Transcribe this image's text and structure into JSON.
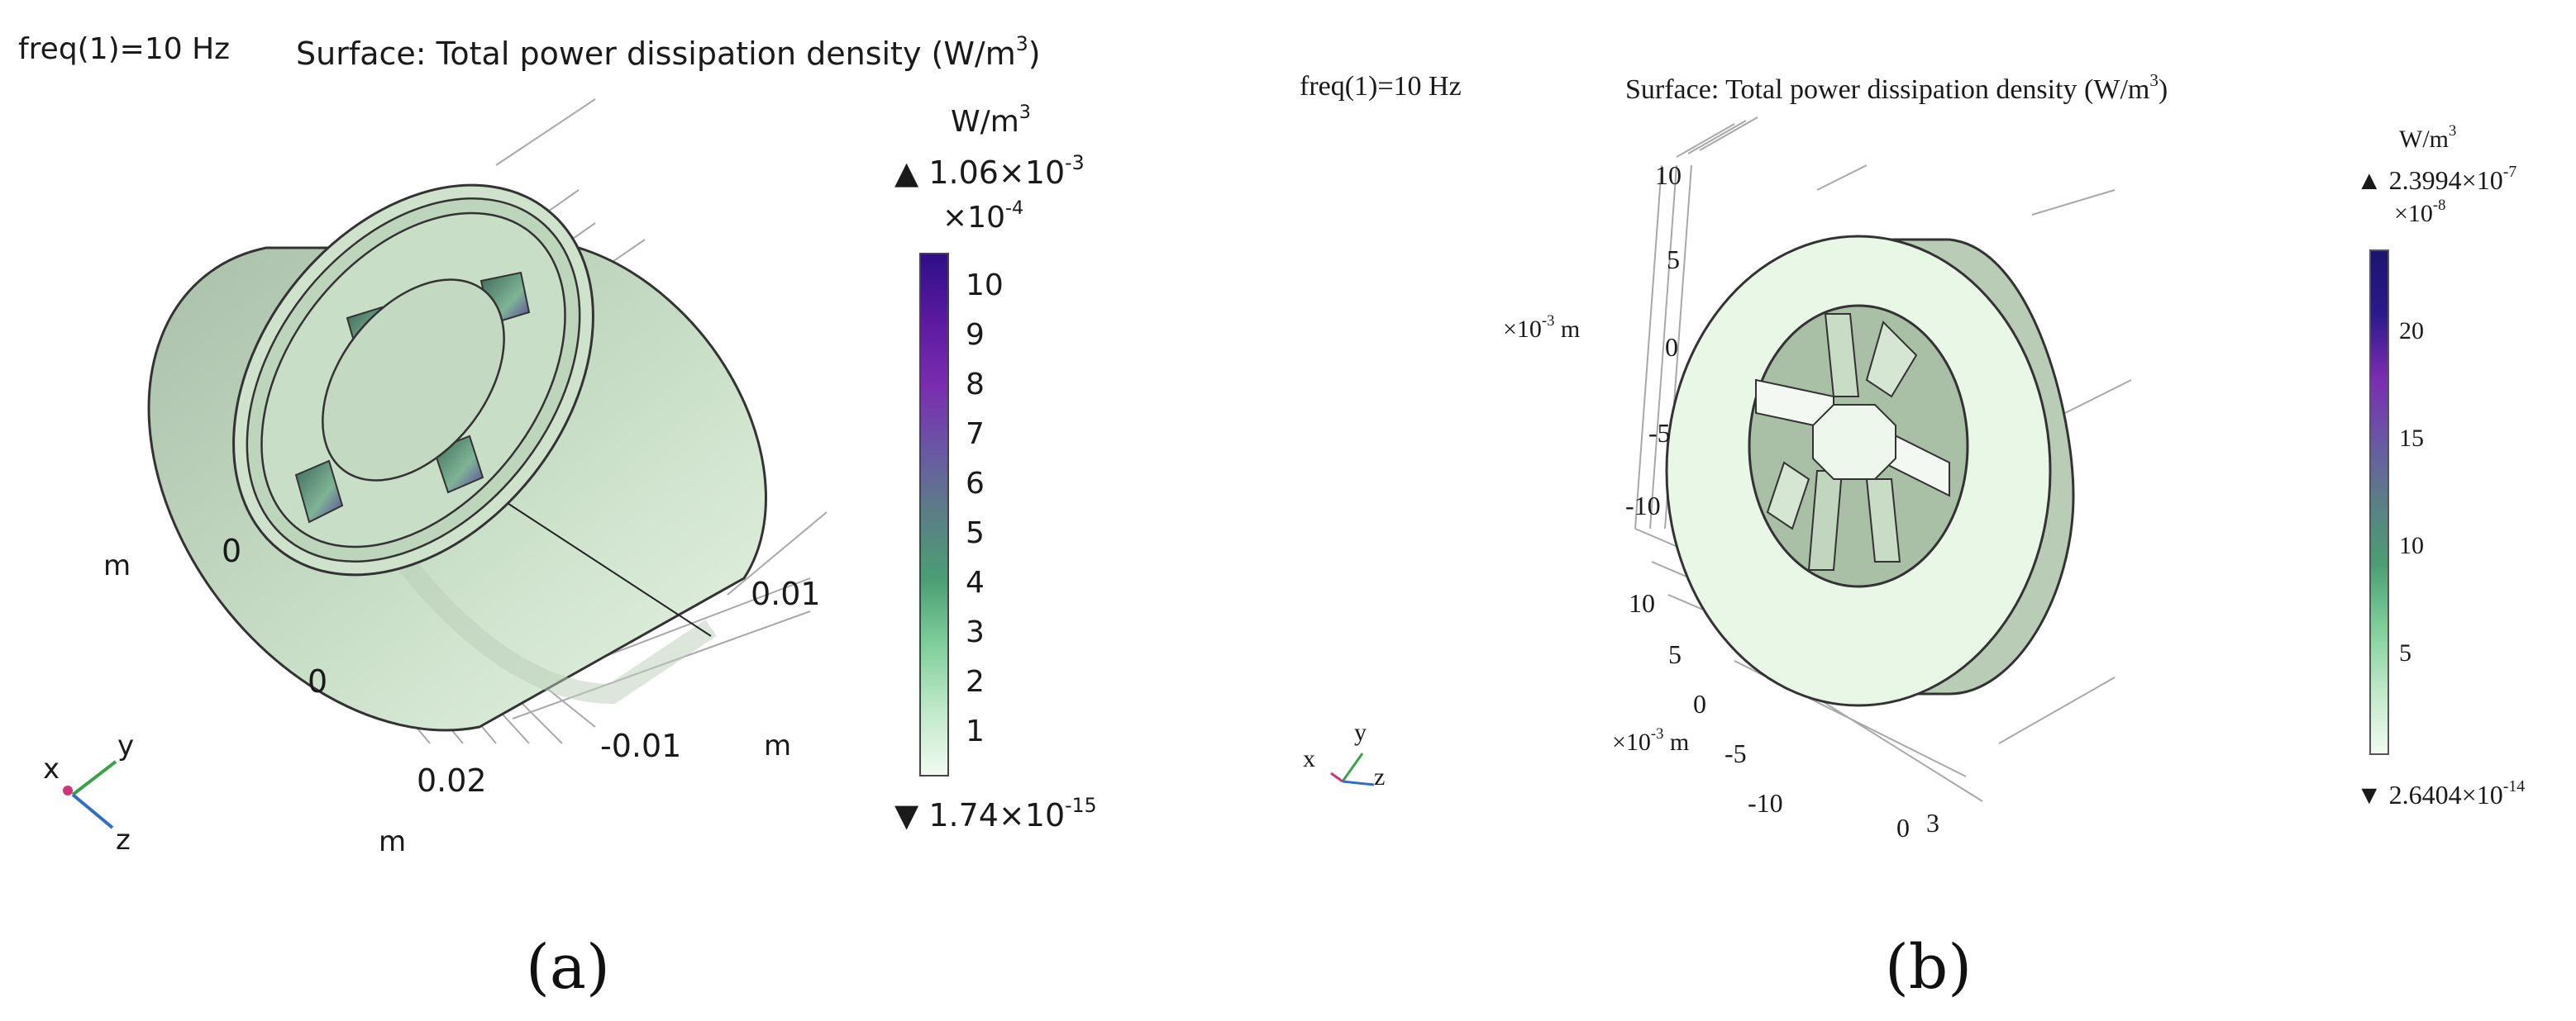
{
  "panel_a": {
    "freq_label": "freq(1)=10 Hz",
    "title": "Surface: Total power dissipation density (W/m",
    "title_exp": "3",
    "title_close": ")",
    "colorbar": {
      "unit_base": "W/m",
      "unit_exp": "3",
      "max_base": "1.06×10",
      "max_exp": "-3",
      "multiplier_base": "×10",
      "multiplier_exp": "-4",
      "ticks": [
        "10",
        "9",
        "8",
        "7",
        "6",
        "5",
        "4",
        "3",
        "2",
        "1"
      ],
      "min_base": "1.74×10",
      "min_exp": "-15",
      "colors": [
        "#f0fbf0",
        "#bfe8c8",
        "#7fcf9a",
        "#4b9e74",
        "#5b7f86",
        "#6a56a6",
        "#7a2cb0",
        "#5a1aa0",
        "#2f0f88"
      ]
    },
    "axes": {
      "label_m_left": "m",
      "tick_0_a": "0",
      "tick_0_b": "0",
      "tick_002": "0.02",
      "label_m_bottom": "m",
      "tick_001": "0.01",
      "tick_neg001": "-0.01",
      "label_m_right": "m"
    },
    "triad": {
      "x": "x",
      "y": "y",
      "z": "z"
    },
    "caption": "(a)"
  },
  "panel_b": {
    "freq_label": "freq(1)=10 Hz",
    "title": "Surface: Total power dissipation density (W/m",
    "title_exp": "3",
    "title_close": ")",
    "colorbar": {
      "unit_base": "W/m",
      "unit_exp": "3",
      "max_base": "2.3994×10",
      "max_exp": "-7",
      "multiplier_base": "×10",
      "multiplier_exp": "-8",
      "ticks": [
        "20",
        "15",
        "10",
        "5"
      ],
      "min_base": "2.6404×10",
      "min_exp": "-14",
      "colors": [
        "#f0fbf0",
        "#bfe8c8",
        "#7fcf9a",
        "#4b9e74",
        "#5b7f86",
        "#6a56a6",
        "#7a2cb0",
        "#2a1a8a",
        "#1c1470"
      ]
    },
    "axes": {
      "vert_ticks": [
        "10",
        "5",
        "0",
        "-5",
        "-10"
      ],
      "vert_unit_base": "×10",
      "vert_unit_exp": "-3",
      "vert_unit_suffix": " m",
      "depth_ticks": [
        "10",
        "5",
        "0",
        "-5",
        "-10"
      ],
      "depth_unit_base": "×10",
      "depth_unit_exp": "-3",
      "depth_unit_suffix": " m",
      "tick_0": "0",
      "tick_3": "3"
    },
    "triad": {
      "x": "x",
      "y": "y",
      "z": "z"
    },
    "caption": "(b)"
  }
}
